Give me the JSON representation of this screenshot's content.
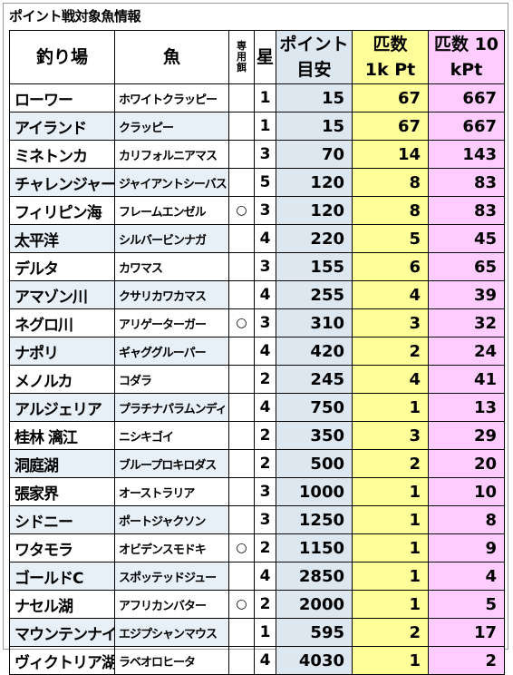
{
  "title": "ポイント戦対象魚情報",
  "headers": {
    "spot": "釣り場",
    "fish": "魚",
    "bait": "専用餌",
    "star": "星",
    "point": "ポイント目安",
    "count1k": "匹数 1k Pt",
    "count10k": "匹数 10 kPt"
  },
  "rows": [
    {
      "spot": "ローワー",
      "fish": "ホワイトクラッピー",
      "bait": "",
      "star": "1",
      "point": "15",
      "c1k": "67",
      "c10k": "667"
    },
    {
      "spot": "アイランド",
      "fish": "クラッピー",
      "bait": "",
      "star": "1",
      "point": "15",
      "c1k": "67",
      "c10k": "667"
    },
    {
      "spot": "ミネトンカ",
      "fish": "カリフォルニアマス",
      "bait": "",
      "star": "3",
      "point": "70",
      "c1k": "14",
      "c10k": "143"
    },
    {
      "spot": "チャレンジャー",
      "fish": "ジャイアントシーバス",
      "bait": "",
      "star": "5",
      "point": "120",
      "c1k": "8",
      "c10k": "83"
    },
    {
      "spot": "フィリピン海",
      "fish": "フレームエンゼル",
      "bait": "○",
      "star": "3",
      "point": "120",
      "c1k": "8",
      "c10k": "83"
    },
    {
      "spot": "太平洋",
      "fish": "シルバービンナガ",
      "bait": "",
      "star": "4",
      "point": "220",
      "c1k": "5",
      "c10k": "45"
    },
    {
      "spot": "デルタ",
      "fish": "カワマス",
      "bait": "",
      "star": "3",
      "point": "155",
      "c1k": "6",
      "c10k": "65"
    },
    {
      "spot": "アマゾン川",
      "fish": "クサリカワカマス",
      "bait": "",
      "star": "4",
      "point": "255",
      "c1k": "4",
      "c10k": "39"
    },
    {
      "spot": "ネグロ川",
      "fish": "アリゲーターガー",
      "bait": "○",
      "star": "3",
      "point": "310",
      "c1k": "3",
      "c10k": "32"
    },
    {
      "spot": "ナポリ",
      "fish": "ギャググルーパー",
      "bait": "",
      "star": "4",
      "point": "420",
      "c1k": "2",
      "c10k": "24"
    },
    {
      "spot": "メノルカ",
      "fish": "コダラ",
      "bait": "",
      "star": "2",
      "point": "245",
      "c1k": "4",
      "c10k": "41"
    },
    {
      "spot": "アルジェリア",
      "fish": "プラチナパラムンディ",
      "bait": "",
      "star": "4",
      "point": "750",
      "c1k": "1",
      "c10k": "13"
    },
    {
      "spot": "桂林 漓江",
      "fish": "ニシキゴイ",
      "bait": "",
      "star": "2",
      "point": "350",
      "c1k": "3",
      "c10k": "29"
    },
    {
      "spot": "洞庭湖",
      "fish": "ブループロキロダス",
      "bait": "",
      "star": "2",
      "point": "500",
      "c1k": "2",
      "c10k": "20"
    },
    {
      "spot": "張家界",
      "fish": "オーストラリア",
      "bait": "",
      "star": "3",
      "point": "1000",
      "c1k": "1",
      "c10k": "10"
    },
    {
      "spot": "シドニー",
      "fish": "ポートジャクソン",
      "bait": "",
      "star": "3",
      "point": "1250",
      "c1k": "1",
      "c10k": "8"
    },
    {
      "spot": "ワタモラ",
      "fish": "オビデンスモドキ",
      "bait": "○",
      "star": "2",
      "point": "1150",
      "c1k": "1",
      "c10k": "9"
    },
    {
      "spot": "ゴールドC",
      "fish": "スポッテッドジュー",
      "bait": "",
      "star": "4",
      "point": "2850",
      "c1k": "1",
      "c10k": "4"
    },
    {
      "spot": "ナセル湖",
      "fish": "アフリカンバター",
      "bait": "○",
      "star": "2",
      "point": "2000",
      "c1k": "1",
      "c10k": "5"
    },
    {
      "spot": "マウンテンナイル",
      "fish": "エジプシャンマウス",
      "bait": "",
      "star": "1",
      "point": "595",
      "c1k": "2",
      "c10k": "17"
    },
    {
      "spot": "ヴィクトリア湖",
      "fish": "ラベオロヒータ",
      "bait": "",
      "star": "4",
      "point": "4030",
      "c1k": "1",
      "c10k": "2"
    }
  ]
}
